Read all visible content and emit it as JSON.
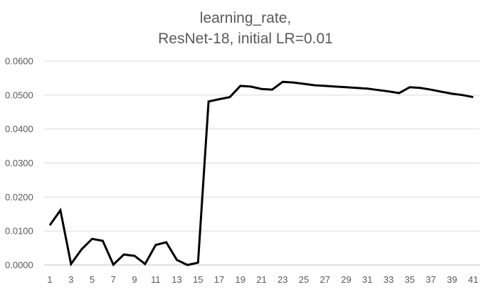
{
  "chart_data": {
    "type": "line",
    "title": [
      "learning_rate,",
      "ResNet-18, initial LR=0.01"
    ],
    "xlabel": "",
    "ylabel": "",
    "x": [
      1,
      2,
      3,
      4,
      5,
      6,
      7,
      8,
      9,
      10,
      11,
      12,
      13,
      14,
      15,
      16,
      17,
      18,
      19,
      20,
      21,
      22,
      23,
      24,
      25,
      26,
      27,
      28,
      29,
      30,
      31,
      32,
      33,
      34,
      35,
      36,
      37,
      38,
      39,
      40,
      41
    ],
    "x_tick_labels": [
      "1",
      "3",
      "5",
      "7",
      "9",
      "11",
      "13",
      "15",
      "17",
      "19",
      "21",
      "23",
      "25",
      "27",
      "29",
      "31",
      "33",
      "35",
      "37",
      "39",
      "41"
    ],
    "y_tick_labels": [
      "0.0000",
      "0.0100",
      "0.0200",
      "0.0300",
      "0.0400",
      "0.0500",
      "0.0600"
    ],
    "ylim": [
      0,
      0.06
    ],
    "grid": true,
    "legend": "none",
    "series": [
      {
        "color": "#000000",
        "values": [
          0.0117,
          0.0161,
          0.0003,
          0.0046,
          0.0077,
          0.0071,
          0.0001,
          0.0031,
          0.0027,
          0.0003,
          0.0059,
          0.0067,
          0.0015,
          0.0,
          0.0007,
          0.0481,
          0.0488,
          0.0494,
          0.0527,
          0.0525,
          0.0518,
          0.0516,
          0.0539,
          0.0537,
          0.0533,
          0.0529,
          0.0527,
          0.0525,
          0.0523,
          0.0521,
          0.0519,
          0.0515,
          0.0511,
          0.0506,
          0.0523,
          0.0521,
          0.0516,
          0.051,
          0.0504,
          0.05,
          0.0494
        ]
      }
    ]
  }
}
